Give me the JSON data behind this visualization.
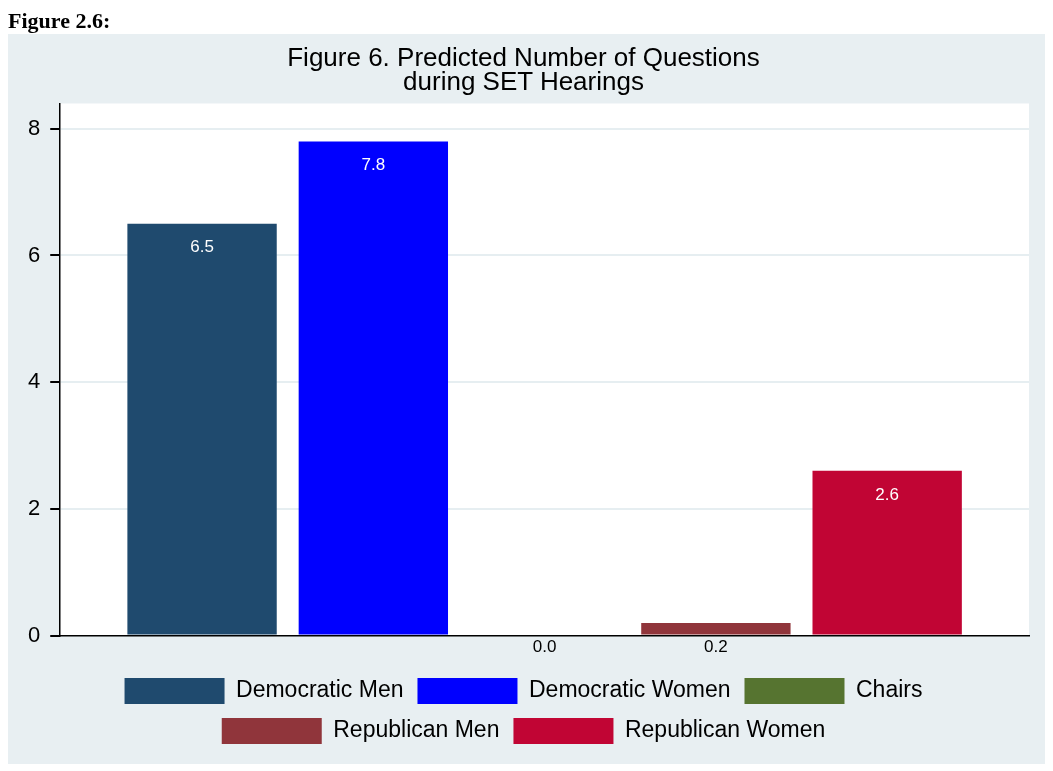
{
  "chart_data": {
    "type": "bar",
    "title": "Figure 6. Predicted Number of Questions\nduring SET Hearings",
    "annotations": [
      "Figure 2.6:"
    ],
    "categories": [
      null
    ],
    "series": [
      {
        "name": "Democratic Men",
        "color": "#1f4a6e",
        "values": [
          6.5
        ],
        "value_labels": [
          "6.5"
        ]
      },
      {
        "name": "Democratic Women",
        "color": "#0000ff",
        "values": [
          7.8
        ],
        "value_labels": [
          "7.8"
        ]
      },
      {
        "name": "Chairs",
        "color": "#567430",
        "values": [
          0
        ],
        "value_labels": [
          "0.0"
        ]
      },
      {
        "name": "Republican Men",
        "color": "#90353b",
        "values": [
          0.2
        ],
        "value_labels": [
          "0.2"
        ]
      },
      {
        "name": "Republican Women",
        "color": "#c10534",
        "values": [
          2.6
        ],
        "value_labels": [
          "2.6"
        ]
      }
    ],
    "ylim": [
      0,
      8.4
    ],
    "yticks": [
      0,
      2,
      4,
      6,
      8
    ],
    "grid": "y",
    "legend": "bottom"
  }
}
